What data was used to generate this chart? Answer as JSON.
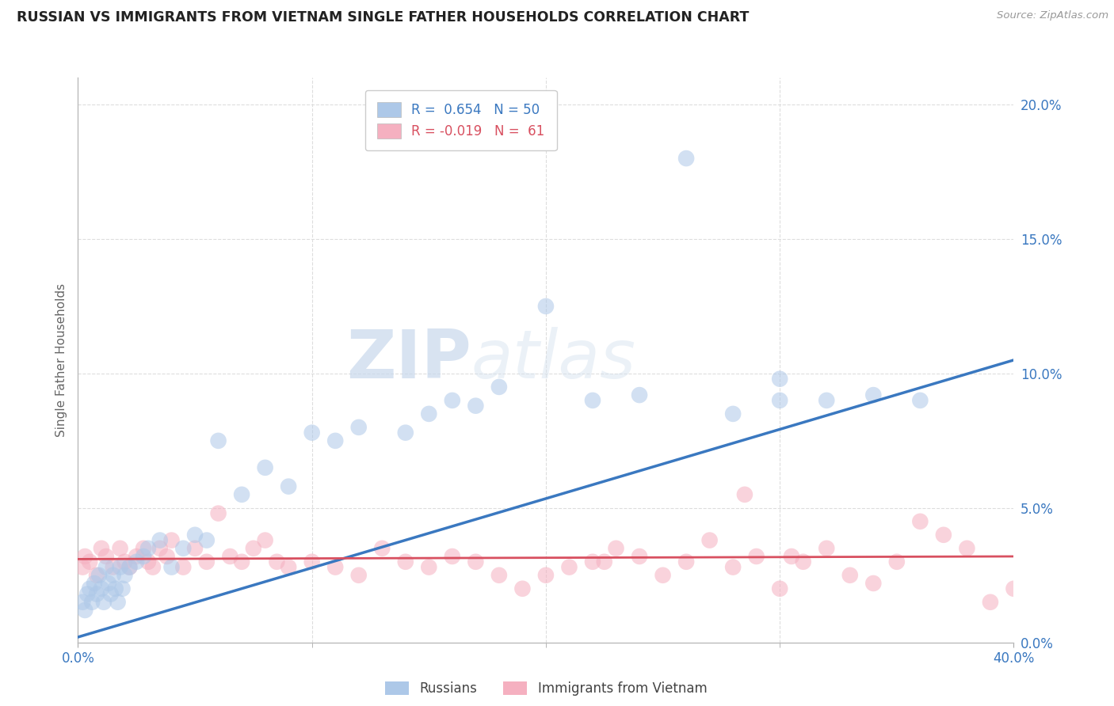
{
  "title": "RUSSIAN VS IMMIGRANTS FROM VIETNAM SINGLE FATHER HOUSEHOLDS CORRELATION CHART",
  "source": "Source: ZipAtlas.com",
  "ylabel": "Single Father Households",
  "yticks": [
    0.0,
    5.0,
    10.0,
    15.0,
    20.0
  ],
  "xticks_show": [
    0.0,
    40.0
  ],
  "xticks_grid": [
    10.0,
    20.0,
    30.0
  ],
  "blue_R": "0.654",
  "blue_N": "50",
  "pink_R": "-0.019",
  "pink_N": "61",
  "blue_color": "#adc8e8",
  "pink_color": "#f5b0c0",
  "blue_line_color": "#3a78c0",
  "pink_line_color": "#d85060",
  "legend_blue_label": "Russians",
  "legend_pink_label": "Immigrants from Vietnam",
  "watermark_ZIP": "ZIP",
  "watermark_atlas": "atlas",
  "background_color": "#ffffff",
  "blue_scatter_x": [
    0.2,
    0.3,
    0.4,
    0.5,
    0.6,
    0.7,
    0.8,
    0.9,
    1.0,
    1.1,
    1.2,
    1.3,
    1.4,
    1.5,
    1.6,
    1.7,
    1.8,
    1.9,
    2.0,
    2.2,
    2.5,
    2.8,
    3.0,
    3.5,
    4.0,
    4.5,
    5.0,
    5.5,
    6.0,
    7.0,
    8.0,
    9.0,
    10.0,
    11.0,
    12.0,
    14.0,
    15.0,
    16.0,
    17.0,
    18.0,
    20.0,
    22.0,
    24.0,
    26.0,
    28.0,
    30.0,
    30.0,
    32.0,
    34.0,
    36.0
  ],
  "blue_scatter_y": [
    1.5,
    1.2,
    1.8,
    2.0,
    1.5,
    2.2,
    1.8,
    2.5,
    2.0,
    1.5,
    2.8,
    2.2,
    1.8,
    2.5,
    2.0,
    1.5,
    2.8,
    2.0,
    2.5,
    2.8,
    3.0,
    3.2,
    3.5,
    3.8,
    2.8,
    3.5,
    4.0,
    3.8,
    7.5,
    5.5,
    6.5,
    5.8,
    7.8,
    7.5,
    8.0,
    7.8,
    8.5,
    9.0,
    8.8,
    9.5,
    12.5,
    9.0,
    9.2,
    18.0,
    8.5,
    9.8,
    9.0,
    9.0,
    9.2,
    9.0
  ],
  "pink_scatter_x": [
    0.2,
    0.3,
    0.5,
    0.8,
    1.0,
    1.2,
    1.5,
    1.8,
    2.0,
    2.2,
    2.5,
    2.8,
    3.0,
    3.2,
    3.5,
    3.8,
    4.0,
    4.5,
    5.0,
    5.5,
    6.0,
    6.5,
    7.0,
    7.5,
    8.0,
    8.5,
    9.0,
    10.0,
    11.0,
    12.0,
    13.0,
    14.0,
    15.0,
    16.0,
    17.0,
    18.0,
    19.0,
    20.0,
    21.0,
    22.0,
    23.0,
    24.0,
    25.0,
    26.0,
    27.0,
    28.0,
    29.0,
    30.0,
    31.0,
    32.0,
    33.0,
    34.0,
    35.0,
    36.0,
    37.0,
    38.0,
    39.0,
    40.0,
    28.5,
    22.5,
    30.5
  ],
  "pink_scatter_y": [
    2.8,
    3.2,
    3.0,
    2.5,
    3.5,
    3.2,
    2.8,
    3.5,
    3.0,
    2.8,
    3.2,
    3.5,
    3.0,
    2.8,
    3.5,
    3.2,
    3.8,
    2.8,
    3.5,
    3.0,
    4.8,
    3.2,
    3.0,
    3.5,
    3.8,
    3.0,
    2.8,
    3.0,
    2.8,
    2.5,
    3.5,
    3.0,
    2.8,
    3.2,
    3.0,
    2.5,
    2.0,
    2.5,
    2.8,
    3.0,
    3.5,
    3.2,
    2.5,
    3.0,
    3.8,
    2.8,
    3.2,
    2.0,
    3.0,
    3.5,
    2.5,
    2.2,
    3.0,
    4.5,
    4.0,
    3.5,
    1.5,
    2.0,
    5.5,
    3.0,
    3.2
  ],
  "blue_line_x0": 0.0,
  "blue_line_x1": 40.0,
  "blue_line_y0": 0.2,
  "blue_line_y1": 10.5,
  "pink_line_x0": 0.0,
  "pink_line_x1": 40.0,
  "pink_line_y0": 3.1,
  "pink_line_y1": 3.2
}
